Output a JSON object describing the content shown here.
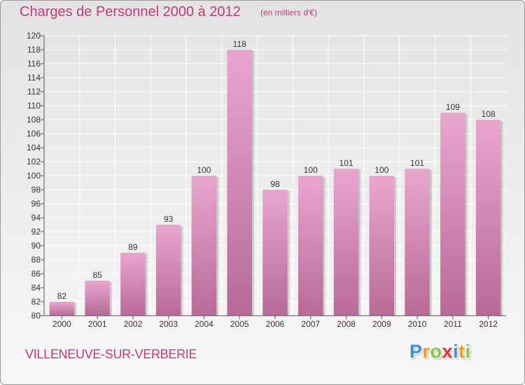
{
  "header": {
    "title": "Charges de Personnel 2000 à 2012",
    "unit": "(en milliers d'€)"
  },
  "footer": {
    "city": "VILLENEUVE-SUR-VERBERIE",
    "logo": {
      "letters": [
        "P",
        "r",
        "o",
        "x",
        "i",
        "t",
        "i"
      ],
      "colors": [
        "#3a8fd8",
        "#f29a1c",
        "#8ec63f",
        "#e2312f",
        "#3a8fd8",
        "#f29a1c",
        "#8ec63f"
      ]
    }
  },
  "colors": {
    "accent": "#c0397a",
    "bar_top": "#e8a6cf",
    "bar_bottom": "#b86a97"
  },
  "chart_data": {
    "type": "bar",
    "title": "Charges de Personnel 2000 à 2012",
    "subtitle": "(en milliers d'€)",
    "xlabel": "",
    "ylabel": "",
    "categories": [
      "2000",
      "2001",
      "2002",
      "2003",
      "2004",
      "2005",
      "2006",
      "2007",
      "2008",
      "2009",
      "2010",
      "2011",
      "2012"
    ],
    "values": [
      82,
      85,
      89,
      93,
      100,
      118,
      98,
      100,
      101,
      100,
      101,
      109,
      108
    ],
    "data_labels": [
      "82",
      "85",
      "89",
      "93",
      "100",
      "118",
      "98",
      "100",
      "101",
      "100",
      "101",
      "109",
      "108"
    ],
    "ylim": [
      80,
      120
    ],
    "yticks": [
      80,
      82,
      84,
      86,
      88,
      90,
      92,
      94,
      96,
      98,
      100,
      102,
      104,
      106,
      108,
      110,
      112,
      114,
      116,
      118,
      120
    ],
    "grid": true,
    "legend": "none"
  }
}
